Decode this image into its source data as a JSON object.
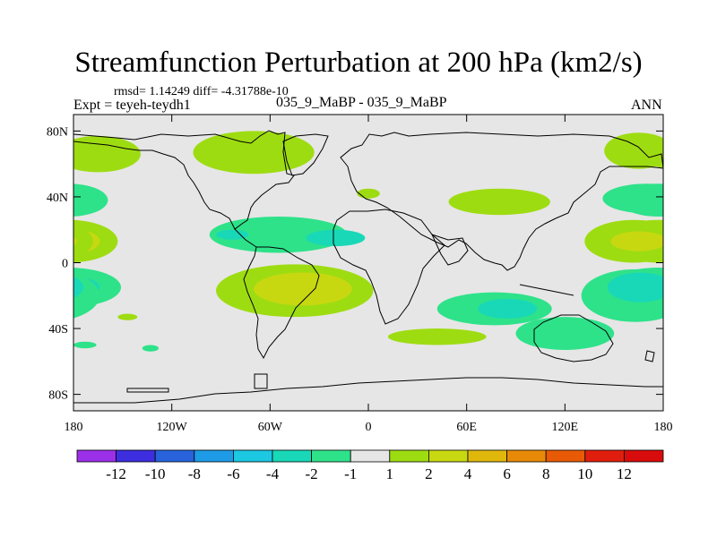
{
  "chart_data": {
    "type": "heatmap",
    "title": "Streamfunction Perturbation at 200 hPa (km2/s)",
    "stats_text": "rmsd= 1.14249 diff= -4.31788e-10",
    "experiment_text": "Expt = teyeh-teydh1",
    "case_text": "035_9_MaBP - 035_9_MaBP",
    "season_text": "ANN",
    "xlim": [
      -180,
      180
    ],
    "ylim": [
      -90,
      90
    ],
    "x_ticks": [
      {
        "value": -180,
        "label": "180"
      },
      {
        "value": -120,
        "label": "120W"
      },
      {
        "value": -60,
        "label": "60W"
      },
      {
        "value": 0,
        "label": "0"
      },
      {
        "value": 60,
        "label": "60E"
      },
      {
        "value": 120,
        "label": "120E"
      },
      {
        "value": 180,
        "label": "180"
      }
    ],
    "y_ticks": [
      {
        "value": 80,
        "label": "80N"
      },
      {
        "value": 40,
        "label": "40N"
      },
      {
        "value": 0,
        "label": "0"
      },
      {
        "value": -40,
        "label": "40S"
      },
      {
        "value": -80,
        "label": "80S"
      }
    ],
    "colorbar": {
      "levels": [
        "-12",
        "-10",
        "-8",
        "-6",
        "-4",
        "-2",
        "-1",
        "1",
        "2",
        "4",
        "6",
        "8",
        "10",
        "12"
      ],
      "colors": [
        "#9b30e8",
        "#3d2fe0",
        "#2863dc",
        "#1e9be6",
        "#1cc8e2",
        "#18d8b8",
        "#2ee28a",
        "#e6e6e6",
        "#9edc12",
        "#c8d810",
        "#e0b80c",
        "#e88a08",
        "#e85a06",
        "#e01e0e",
        "#d80c0c"
      ]
    },
    "regions": [
      {
        "lon": 195,
        "lat": 66,
        "rlon": 26,
        "rlat": 11,
        "level": 8
      },
      {
        "lon": -70,
        "lat": 67,
        "rlon": 37,
        "rlat": 13,
        "level": 8
      },
      {
        "lon": 165,
        "lat": 68,
        "rlon": 21,
        "rlat": 11,
        "level": 8
      },
      {
        "lon": -183,
        "lat": 38,
        "rlon": 24,
        "rlat": 10,
        "level": 6
      },
      {
        "lon": -182,
        "lat": 38,
        "rlon": 18,
        "rlat": 5,
        "level": 5
      },
      {
        "lon": 170,
        "lat": 39,
        "rlon": 27,
        "rlat": 9,
        "level": 6
      },
      {
        "lon": 0,
        "lat": 42,
        "rlon": 7,
        "rlat": 3,
        "level": 8
      },
      {
        "lon": 80,
        "lat": 37,
        "rlon": 31,
        "rlat": 8,
        "level": 8
      },
      {
        "lon": -55,
        "lat": 17,
        "rlon": 42,
        "rlat": 11,
        "level": 6
      },
      {
        "lon": -20,
        "lat": 15,
        "rlon": 18,
        "rlat": 5,
        "level": 5
      },
      {
        "lon": -83,
        "lat": 17,
        "rlon": 10,
        "rlat": 3,
        "level": 5
      },
      {
        "lon": -183,
        "lat": 13,
        "rlon": 30,
        "rlat": 13,
        "level": 8
      },
      {
        "lon": -184,
        "lat": 13,
        "rlon": 20,
        "rlat": 8,
        "level": 9
      },
      {
        "lon": 162,
        "lat": 13,
        "rlon": 30,
        "rlat": 13,
        "level": 8
      },
      {
        "lon": 165,
        "lat": 13,
        "rlon": 17,
        "rlat": 6,
        "level": 9
      },
      {
        "lon": -183,
        "lat": -15,
        "rlon": 32,
        "rlat": 12,
        "level": 6
      },
      {
        "lon": -184,
        "lat": -15,
        "rlon": 20,
        "rlat": 7,
        "level": 5
      },
      {
        "lon": 163,
        "lat": -20,
        "rlon": 33,
        "rlat": 16,
        "level": 6
      },
      {
        "lon": 166,
        "lat": -15,
        "rlon": 20,
        "rlat": 9,
        "level": 5
      },
      {
        "lon": -45,
        "lat": -17,
        "rlon": 48,
        "rlat": 16,
        "level": 8
      },
      {
        "lon": -40,
        "lat": -16,
        "rlon": 30,
        "rlat": 10,
        "level": 9
      },
      {
        "lon": 77,
        "lat": -28,
        "rlon": 35,
        "rlat": 10,
        "level": 6
      },
      {
        "lon": 85,
        "lat": -28,
        "rlon": 18,
        "rlat": 6,
        "level": 5
      },
      {
        "lon": 120,
        "lat": -43,
        "rlon": 30,
        "rlat": 10,
        "level": 6
      },
      {
        "lon": 42,
        "lat": -45,
        "rlon": 30,
        "rlat": 5,
        "level": 8
      },
      {
        "lon": -147,
        "lat": -33,
        "rlon": 6,
        "rlat": 2,
        "level": 8
      },
      {
        "lon": -133,
        "lat": -52,
        "rlon": 5,
        "rlat": 2,
        "level": 6
      },
      {
        "lon": -173,
        "lat": -50,
        "rlon": 7,
        "rlat": 2,
        "level": 6
      }
    ]
  }
}
